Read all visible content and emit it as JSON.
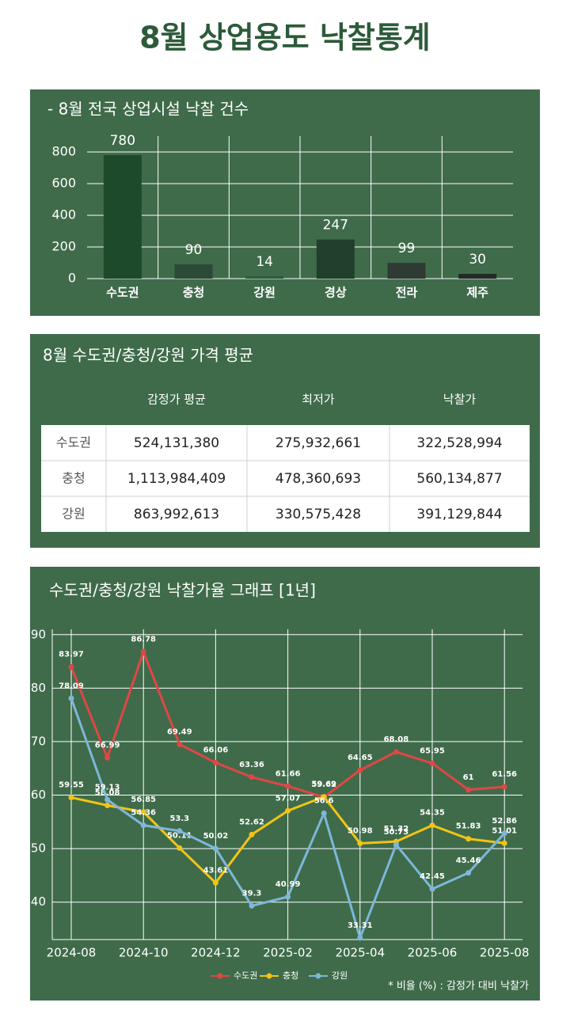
{
  "title": "8월 상업용도 낙찰통계",
  "chart_data": [
    {
      "type": "bar",
      "title": "- 8월 전국 상업시설 낙찰 건수",
      "categories": [
        "수도권",
        "충청",
        "강원",
        "경상",
        "전라",
        "제주"
      ],
      "values": [
        780,
        90,
        14,
        247,
        99,
        30
      ],
      "colors": [
        "#1d4a2b",
        "#2c4a37",
        "#2a5c3b",
        "#213f2c",
        "#2e3a33",
        "#252a27"
      ],
      "ylim": [
        0,
        900
      ],
      "yticks": [
        0,
        200,
        400,
        600,
        800
      ],
      "grid": true
    },
    {
      "type": "line",
      "title": "수도권/충청/강원 낙찰가율 그래프 [1년]",
      "categories": [
        "2024-08",
        null,
        "2024-10",
        null,
        "2024-12",
        null,
        "2025-02",
        null,
        "2025-04",
        null,
        "2025-06",
        null,
        "2025-08"
      ],
      "series": [
        {
          "name": "수도권",
          "color": "#e04646",
          "values": [
            83.97,
            66.99,
            86.78,
            69.49,
            66.06,
            63.36,
            61.66,
            59.62,
            64.65,
            68.08,
            65.95,
            61,
            61.56
          ]
        },
        {
          "name": "충청",
          "color": "#f2c414",
          "values": [
            59.55,
            58.08,
            56.85,
            50.11,
            43.61,
            52.62,
            57.07,
            59.69,
            50.98,
            51.32,
            54.35,
            51.83,
            51.01
          ]
        },
        {
          "name": "강원",
          "color": "#7db7d9",
          "values": [
            78.09,
            59.13,
            54.36,
            53.3,
            50.02,
            39.3,
            40.99,
            56.6,
            33.31,
            50.73,
            42.45,
            45.46,
            52.86
          ]
        }
      ],
      "ylim": [
        33,
        91
      ],
      "yticks": [
        40,
        50,
        60,
        70,
        80,
        90
      ],
      "grid": true,
      "legend": "bottom",
      "note": "* 비율 (%) : 감정가 대비 낙찰가"
    }
  ],
  "table": {
    "title": "8월 수도권/충청/강원 가격 평균",
    "columns": [
      "감정가 평균",
      "최저가",
      "낙찰가"
    ],
    "rows": [
      [
        "수도권",
        "524,131,380",
        "275,932,661",
        "322,528,994"
      ],
      [
        "충청",
        "1,113,984,409",
        "478,360,693",
        "560,134,877"
      ],
      [
        "강원",
        "863,992,613",
        "330,575,428",
        "391,129,844"
      ]
    ]
  }
}
